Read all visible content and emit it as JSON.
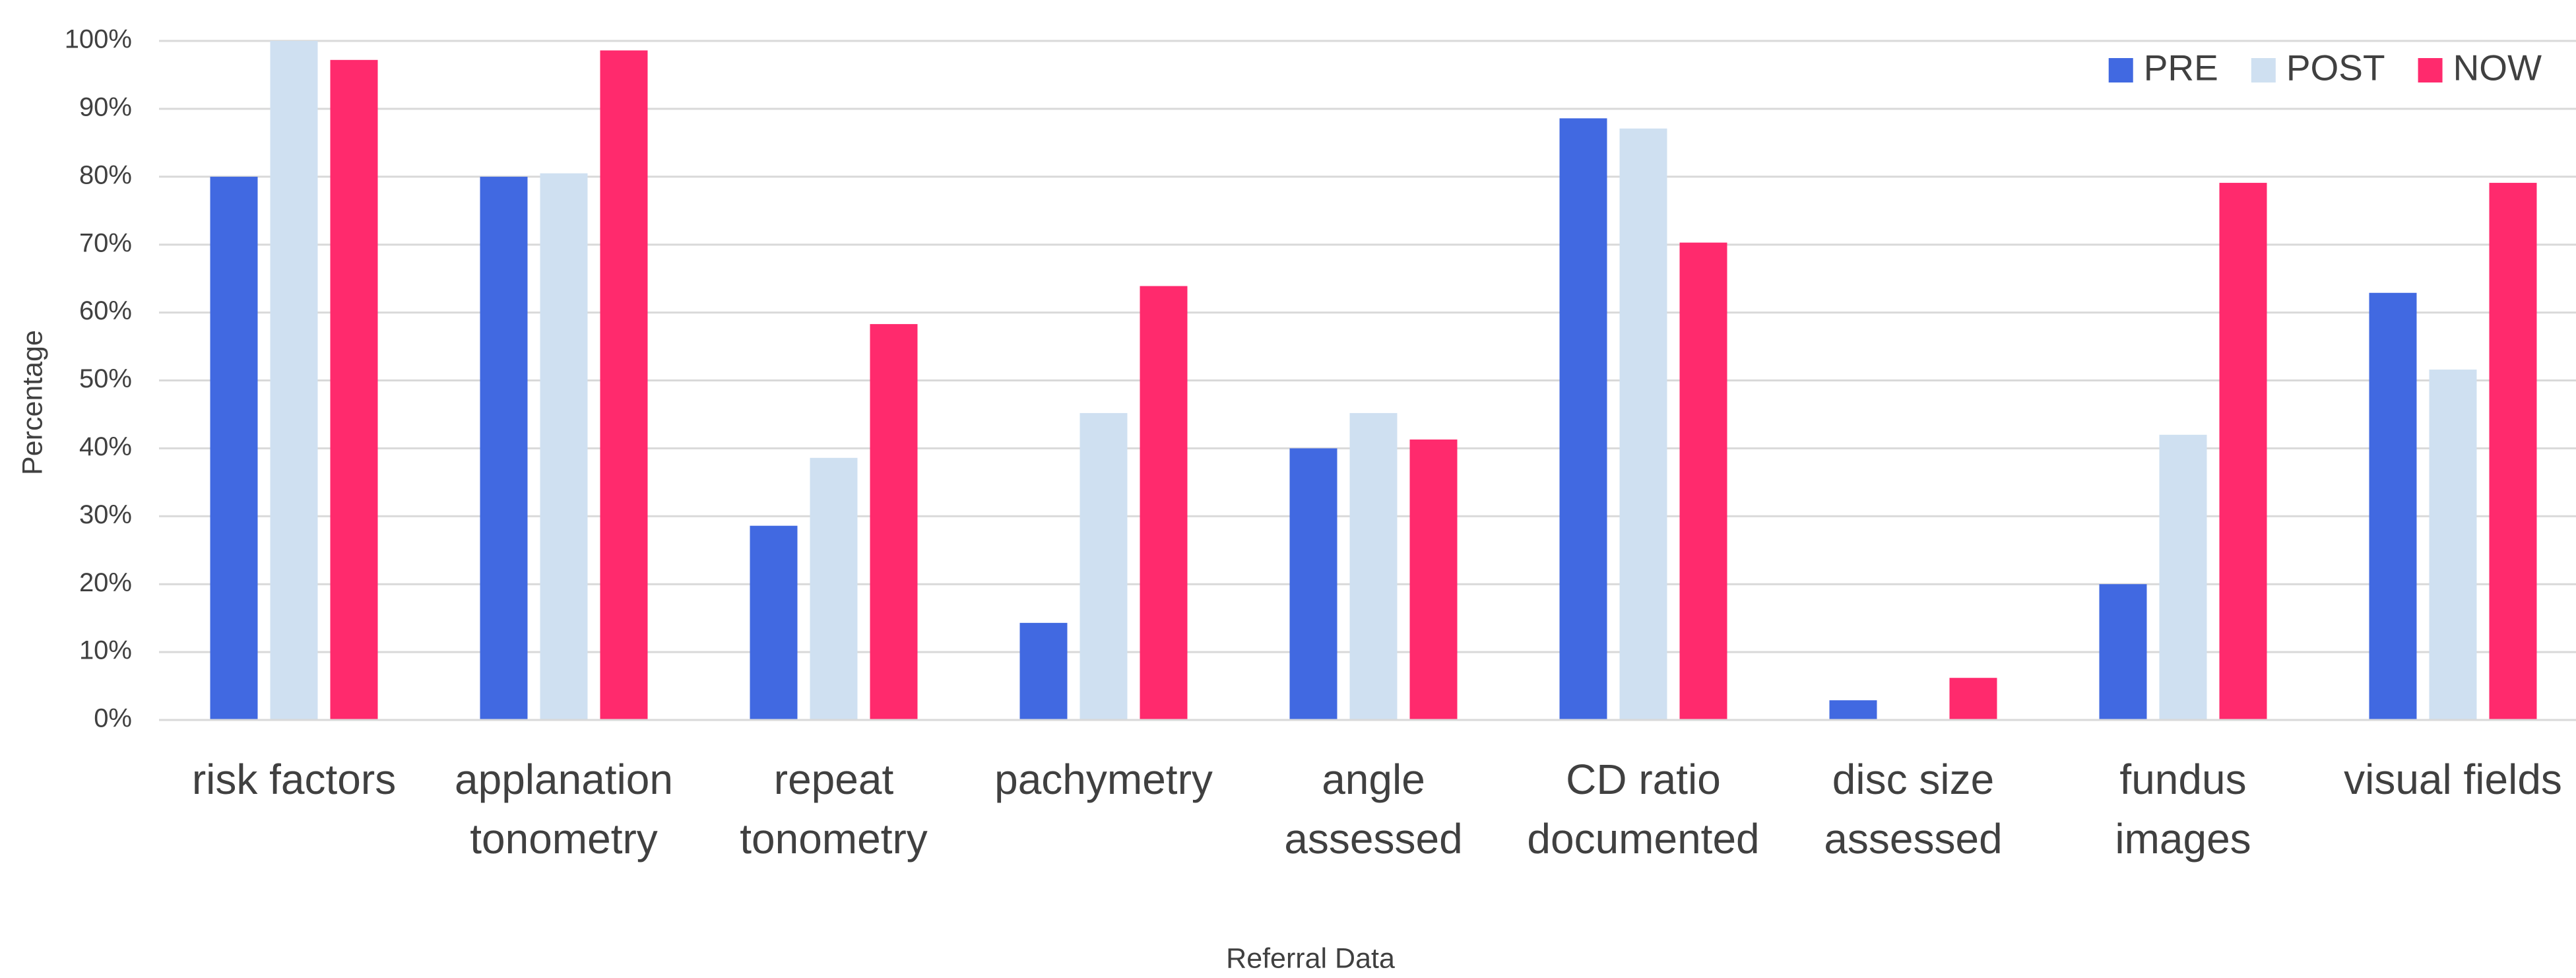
{
  "chart_data": {
    "type": "bar",
    "x_label": "Referral Data",
    "y_label": "Percentage",
    "categories": [
      "risk factors",
      "applanation tonometry",
      "repeat tonometry",
      "pachymetry",
      "angle assessed",
      "CD ratio documented",
      "disc size assessed",
      "fundus images",
      "visual fields"
    ],
    "series": [
      {
        "name": "PRE",
        "color": "#4169e1",
        "values": [
          80,
          80,
          28.6,
          14.3,
          40,
          88.6,
          2.9,
          20,
          62.9
        ]
      },
      {
        "name": "POST",
        "color": "#cfe0f1",
        "values": [
          100,
          80.5,
          38.6,
          45.2,
          45.2,
          87.1,
          0,
          42,
          51.6
        ]
      },
      {
        "name": "NOW",
        "color": "#ff2a6d",
        "values": [
          97.2,
          98.6,
          58.3,
          63.9,
          41.3,
          70.3,
          6.2,
          79.1,
          79.1
        ]
      }
    ],
    "ylim": [
      0,
      100
    ],
    "yticks": [
      {
        "value": 0,
        "label": "0%"
      },
      {
        "value": 10,
        "label": "10%"
      },
      {
        "value": 20,
        "label": "20%"
      },
      {
        "value": 30,
        "label": "30%"
      },
      {
        "value": 40,
        "label": "40%"
      },
      {
        "value": 50,
        "label": "50%"
      },
      {
        "value": 60,
        "label": "60%"
      },
      {
        "value": 70,
        "label": "70%"
      },
      {
        "value": 80,
        "label": "80%"
      },
      {
        "value": 90,
        "label": "90%"
      },
      {
        "value": 100,
        "label": "100%"
      }
    ],
    "grid": true,
    "legend": "upper right"
  }
}
